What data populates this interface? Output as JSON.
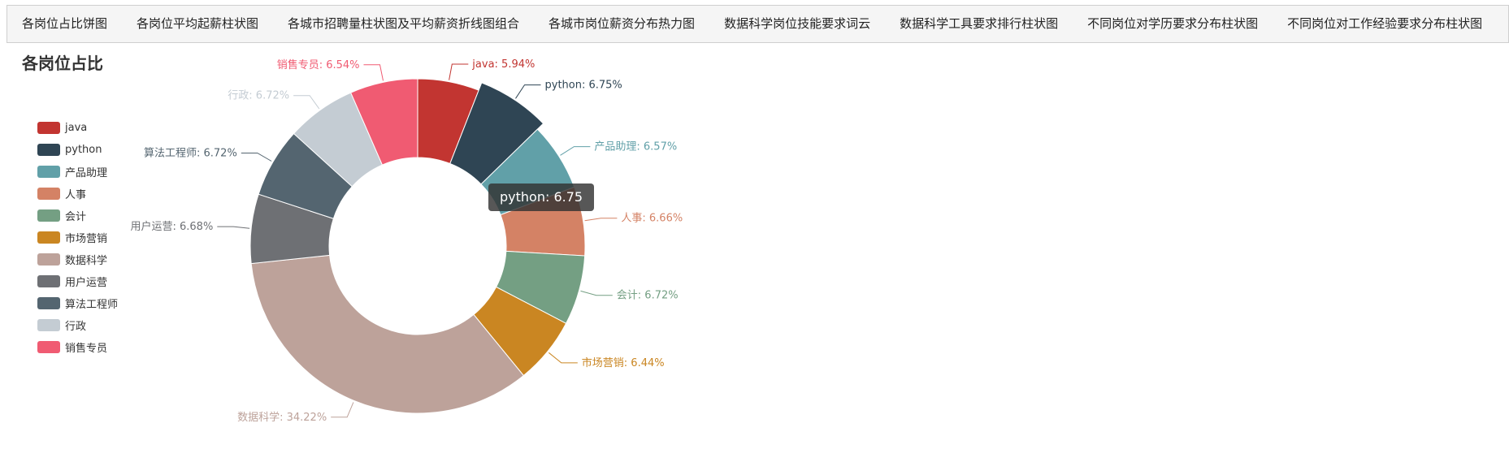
{
  "tabs": [
    "各岗位占比饼图",
    "各岗位平均起薪柱状图",
    "各城市招聘量柱状图及平均薪资折线图组合",
    "各城市岗位薪资分布热力图",
    "数据科学岗位技能要求词云",
    "数据科学工具要求排行柱状图",
    "不同岗位对学历要求分布柱状图",
    "不同岗位对工作经验要求分布柱状图"
  ],
  "tooltip_text": "python: 6.75",
  "chart_data": {
    "type": "pie",
    "title": "各岗位占比",
    "legend_position": "left",
    "donut": true,
    "highlighted": "python",
    "slices": [
      {
        "name": "java",
        "value": 5.94,
        "label": "java: 5.94%",
        "color": "#c23531"
      },
      {
        "name": "python",
        "value": 6.75,
        "label": "python: 6.75%",
        "color": "#2f4554"
      },
      {
        "name": "产品助理",
        "value": 6.57,
        "label": "产品助理: 6.57%",
        "color": "#61a0a8"
      },
      {
        "name": "人事",
        "value": 6.66,
        "label": "人事: 6.66%",
        "color": "#d48265"
      },
      {
        "name": "会计",
        "value": 6.72,
        "label": "会计: 6.72%",
        "color": "#749f83"
      },
      {
        "name": "市场营销",
        "value": 6.44,
        "label": "市场营销: 6.44%",
        "color": "#ca8622"
      },
      {
        "name": "数据科学",
        "value": 34.22,
        "label": "数据科学: 34.22%",
        "color": "#bda29a"
      },
      {
        "name": "用户运营",
        "value": 6.68,
        "label": "用户运营: 6.68%",
        "color": "#6e7074"
      },
      {
        "name": "算法工程师",
        "value": 6.72,
        "label": "算法工程师: 6.72%",
        "color": "#546570"
      },
      {
        "name": "行政",
        "value": 6.72,
        "label": "行政: 6.72%",
        "color": "#c4ccd3"
      },
      {
        "name": "销售专员",
        "value": 6.54,
        "label": "销售专员: 6.54%",
        "color": "#f05b72"
      }
    ]
  }
}
